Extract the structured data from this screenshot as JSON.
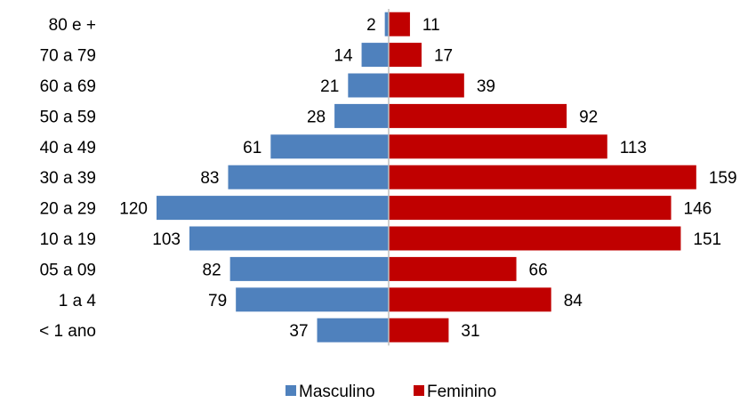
{
  "chart_data": {
    "type": "bar",
    "orientation": "horizontal",
    "categories": [
      "80 e +",
      "70 a 79",
      "60 a 69",
      "50 a 59",
      "40 a 49",
      "30 a 39",
      "20 a 29",
      "10 a 19",
      "05 a 09",
      "1 a 4",
      "< 1 ano"
    ],
    "series": [
      {
        "name": "Masculino",
        "color": "#4F81BD",
        "values": [
          2,
          14,
          21,
          28,
          61,
          83,
          120,
          103,
          82,
          79,
          37
        ]
      },
      {
        "name": "Feminino",
        "color": "#C00000",
        "values": [
          11,
          17,
          39,
          92,
          113,
          159,
          146,
          151,
          66,
          84,
          31
        ]
      }
    ],
    "axis_color": "#BFBFBF",
    "legend_position": "bottom",
    "data_labels": true,
    "grid": false
  }
}
